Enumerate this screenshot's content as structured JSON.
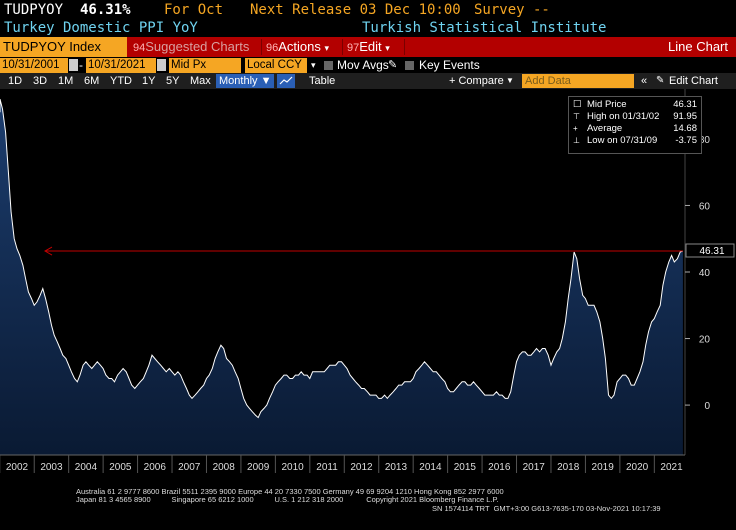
{
  "header": {
    "ticker": "TUDPYOY",
    "value": "46.31%",
    "for_label": "For Oct",
    "next_release": "Next Release 03 Dec 10:00",
    "survey": "Survey --",
    "name": "Turkey Domestic PPI YoY",
    "source": "Turkish Statistical Institute"
  },
  "toolbar": {
    "security": "TUDPYOY Index",
    "suggested_num": "94",
    "suggested": "Suggested Charts",
    "actions_num": "96",
    "actions": "Actions",
    "edit_num": "97",
    "edit": "Edit",
    "title": "Line Chart"
  },
  "params": {
    "start_date": "10/31/2001",
    "end_date": "10/31/2021",
    "field": "Mid Px",
    "currency": "Local CCY",
    "mov_avgs": "Mov Avgs",
    "key_events": "Key Events"
  },
  "periods": {
    "items": [
      "1D",
      "3D",
      "1M",
      "6M",
      "YTD",
      "1Y",
      "5Y",
      "Max"
    ],
    "frequency": "Monthly",
    "table": "Table",
    "compare": "+ Compare",
    "add_data_placeholder": "Add Data",
    "edit_chart": "Edit Chart"
  },
  "legend": {
    "rows": [
      {
        "label": "Mid Price",
        "value": "46.31"
      },
      {
        "label": "High on 01/31/02",
        "value": "91.95"
      },
      {
        "label": "Average",
        "value": "14.68"
      },
      {
        "label": "Low on 07/31/09",
        "value": "-3.75"
      }
    ]
  },
  "footer": {
    "line1": "Australia 61 2 9777 8600 Brazil 5511 2395 9000 Europe 44 20 7330 7500 Germany 49 69 9204 1210 Hong Kong 852 2977 6000",
    "line2": "Japan 81 3 4565 8900          Singapore 65 6212 1000          U.S. 1 212 318 2000           Copyright 2021 Bloomberg Finance L.P.",
    "line3": "SN 1574114 TRT  GMT+3:00 G613-7635-170 03-Nov-2021 10:17:39"
  },
  "colors": {
    "accent": "#f5a623",
    "toolbar": "#b30000",
    "line": "#ffffff",
    "fill_top": "#1c3d6e",
    "marker": "#c00000"
  },
  "chart_data": {
    "type": "area",
    "ylim": [
      -15,
      95
    ],
    "yticks": [
      0,
      20,
      40,
      60,
      80
    ],
    "x_labels": [
      "2002",
      "2003",
      "2004",
      "2005",
      "2006",
      "2007",
      "2008",
      "2009",
      "2010",
      "2011",
      "2012",
      "2013",
      "2014",
      "2015",
      "2016",
      "2017",
      "2018",
      "2019",
      "2020",
      "2021"
    ],
    "last_value_label": "46.31",
    "reference_line": 46.31,
    "points": [
      [
        2001.83,
        88
      ],
      [
        2002.0,
        91.95
      ],
      [
        2002.08,
        89
      ],
      [
        2002.17,
        82
      ],
      [
        2002.25,
        70
      ],
      [
        2002.33,
        58
      ],
      [
        2002.42,
        50
      ],
      [
        2002.5,
        47
      ],
      [
        2002.58,
        45
      ],
      [
        2002.67,
        42
      ],
      [
        2002.75,
        38
      ],
      [
        2002.83,
        34
      ],
      [
        2002.92,
        32
      ],
      [
        2003.0,
        30
      ],
      [
        2003.08,
        31
      ],
      [
        2003.17,
        33
      ],
      [
        2003.25,
        35
      ],
      [
        2003.33,
        32
      ],
      [
        2003.42,
        28
      ],
      [
        2003.5,
        24
      ],
      [
        2003.58,
        21
      ],
      [
        2003.67,
        19
      ],
      [
        2003.75,
        17
      ],
      [
        2003.83,
        15
      ],
      [
        2003.92,
        14
      ],
      [
        2004.0,
        12
      ],
      [
        2004.08,
        10
      ],
      [
        2004.17,
        8
      ],
      [
        2004.25,
        7
      ],
      [
        2004.33,
        9
      ],
      [
        2004.42,
        12
      ],
      [
        2004.5,
        13
      ],
      [
        2004.58,
        12
      ],
      [
        2004.67,
        11
      ],
      [
        2004.75,
        12
      ],
      [
        2004.83,
        13
      ],
      [
        2004.92,
        12
      ],
      [
        2005.0,
        11
      ],
      [
        2005.08,
        9
      ],
      [
        2005.17,
        8
      ],
      [
        2005.25,
        8
      ],
      [
        2005.33,
        7
      ],
      [
        2005.42,
        9
      ],
      [
        2005.5,
        10
      ],
      [
        2005.58,
        11
      ],
      [
        2005.67,
        10
      ],
      [
        2005.75,
        8
      ],
      [
        2005.83,
        6
      ],
      [
        2005.92,
        5
      ],
      [
        2006.0,
        6
      ],
      [
        2006.08,
        7
      ],
      [
        2006.17,
        8
      ],
      [
        2006.25,
        10
      ],
      [
        2006.33,
        12
      ],
      [
        2006.42,
        15
      ],
      [
        2006.5,
        14
      ],
      [
        2006.58,
        13
      ],
      [
        2006.67,
        12
      ],
      [
        2006.75,
        11
      ],
      [
        2006.83,
        10
      ],
      [
        2006.92,
        11
      ],
      [
        2007.0,
        10
      ],
      [
        2007.08,
        9
      ],
      [
        2007.17,
        10
      ],
      [
        2007.25,
        9
      ],
      [
        2007.33,
        7
      ],
      [
        2007.42,
        5
      ],
      [
        2007.5,
        3
      ],
      [
        2007.58,
        2
      ],
      [
        2007.67,
        3
      ],
      [
        2007.75,
        4
      ],
      [
        2007.83,
        5
      ],
      [
        2007.92,
        6
      ],
      [
        2008.0,
        8
      ],
      [
        2008.08,
        9
      ],
      [
        2008.17,
        11
      ],
      [
        2008.25,
        14
      ],
      [
        2008.33,
        16
      ],
      [
        2008.42,
        18
      ],
      [
        2008.5,
        17
      ],
      [
        2008.58,
        14
      ],
      [
        2008.67,
        13
      ],
      [
        2008.75,
        12
      ],
      [
        2008.83,
        10
      ],
      [
        2008.92,
        8
      ],
      [
        2009.0,
        5
      ],
      [
        2009.08,
        2
      ],
      [
        2009.17,
        0
      ],
      [
        2009.25,
        -1
      ],
      [
        2009.33,
        -2
      ],
      [
        2009.42,
        -3
      ],
      [
        2009.5,
        -3.75
      ],
      [
        2009.58,
        -2
      ],
      [
        2009.67,
        -1
      ],
      [
        2009.75,
        0
      ],
      [
        2009.83,
        2
      ],
      [
        2009.92,
        4
      ],
      [
        2010.0,
        6
      ],
      [
        2010.08,
        7
      ],
      [
        2010.17,
        8
      ],
      [
        2010.25,
        9
      ],
      [
        2010.33,
        9
      ],
      [
        2010.42,
        8
      ],
      [
        2010.5,
        8
      ],
      [
        2010.58,
        9
      ],
      [
        2010.67,
        9
      ],
      [
        2010.75,
        10
      ],
      [
        2010.83,
        9
      ],
      [
        2010.92,
        9
      ],
      [
        2011.0,
        8
      ],
      [
        2011.08,
        10
      ],
      [
        2011.17,
        10
      ],
      [
        2011.25,
        10
      ],
      [
        2011.33,
        10
      ],
      [
        2011.42,
        10
      ],
      [
        2011.5,
        11
      ],
      [
        2011.58,
        12
      ],
      [
        2011.67,
        12
      ],
      [
        2011.75,
        12
      ],
      [
        2011.83,
        13
      ],
      [
        2011.92,
        13
      ],
      [
        2012.0,
        12
      ],
      [
        2012.08,
        11
      ],
      [
        2012.17,
        9
      ],
      [
        2012.25,
        8
      ],
      [
        2012.33,
        7
      ],
      [
        2012.42,
        6
      ],
      [
        2012.5,
        5
      ],
      [
        2012.58,
        5
      ],
      [
        2012.67,
        4
      ],
      [
        2012.75,
        3
      ],
      [
        2012.83,
        3
      ],
      [
        2012.92,
        3
      ],
      [
        2013.0,
        2
      ],
      [
        2013.08,
        2
      ],
      [
        2013.17,
        3
      ],
      [
        2013.25,
        2
      ],
      [
        2013.33,
        3
      ],
      [
        2013.42,
        4
      ],
      [
        2013.5,
        5
      ],
      [
        2013.58,
        6
      ],
      [
        2013.67,
        6
      ],
      [
        2013.75,
        7
      ],
      [
        2013.83,
        7
      ],
      [
        2013.92,
        7
      ],
      [
        2014.0,
        8
      ],
      [
        2014.08,
        10
      ],
      [
        2014.17,
        11
      ],
      [
        2014.25,
        12
      ],
      [
        2014.33,
        13
      ],
      [
        2014.42,
        12
      ],
      [
        2014.5,
        11
      ],
      [
        2014.58,
        10
      ],
      [
        2014.67,
        10
      ],
      [
        2014.75,
        9
      ],
      [
        2014.83,
        8
      ],
      [
        2014.92,
        7
      ],
      [
        2015.0,
        5
      ],
      [
        2015.08,
        4
      ],
      [
        2015.17,
        4
      ],
      [
        2015.25,
        5
      ],
      [
        2015.33,
        6
      ],
      [
        2015.42,
        7
      ],
      [
        2015.5,
        7
      ],
      [
        2015.58,
        6
      ],
      [
        2015.67,
        6
      ],
      [
        2015.75,
        7
      ],
      [
        2015.83,
        6
      ],
      [
        2015.92,
        5
      ],
      [
        2016.0,
        4
      ],
      [
        2016.08,
        3
      ],
      [
        2016.17,
        3
      ],
      [
        2016.25,
        3
      ],
      [
        2016.33,
        3
      ],
      [
        2016.42,
        4
      ],
      [
        2016.5,
        3
      ],
      [
        2016.58,
        3
      ],
      [
        2016.67,
        2
      ],
      [
        2016.75,
        2
      ],
      [
        2016.83,
        4
      ],
      [
        2016.92,
        9
      ],
      [
        2017.0,
        13
      ],
      [
        2017.08,
        15
      ],
      [
        2017.17,
        16
      ],
      [
        2017.25,
        16
      ],
      [
        2017.33,
        15
      ],
      [
        2017.42,
        15
      ],
      [
        2017.5,
        16
      ],
      [
        2017.58,
        17
      ],
      [
        2017.67,
        16
      ],
      [
        2017.75,
        17
      ],
      [
        2017.83,
        17
      ],
      [
        2017.92,
        15
      ],
      [
        2018.0,
        12
      ],
      [
        2018.08,
        14
      ],
      [
        2018.17,
        16
      ],
      [
        2018.25,
        17
      ],
      [
        2018.33,
        20
      ],
      [
        2018.42,
        25
      ],
      [
        2018.5,
        32
      ],
      [
        2018.58,
        38
      ],
      [
        2018.67,
        46
      ],
      [
        2018.75,
        44
      ],
      [
        2018.83,
        38
      ],
      [
        2018.92,
        33
      ],
      [
        2019.0,
        32
      ],
      [
        2019.08,
        30
      ],
      [
        2019.17,
        30
      ],
      [
        2019.25,
        30
      ],
      [
        2019.33,
        28
      ],
      [
        2019.42,
        25
      ],
      [
        2019.5,
        20
      ],
      [
        2019.58,
        14
      ],
      [
        2019.67,
        3
      ],
      [
        2019.75,
        2
      ],
      [
        2019.83,
        3
      ],
      [
        2019.92,
        7
      ],
      [
        2020.0,
        8
      ],
      [
        2020.08,
        9
      ],
      [
        2020.17,
        9
      ],
      [
        2020.25,
        8
      ],
      [
        2020.33,
        6
      ],
      [
        2020.42,
        6
      ],
      [
        2020.5,
        8
      ],
      [
        2020.58,
        10
      ],
      [
        2020.67,
        13
      ],
      [
        2020.75,
        18
      ],
      [
        2020.83,
        22
      ],
      [
        2020.92,
        25
      ],
      [
        2021.0,
        26
      ],
      [
        2021.08,
        28
      ],
      [
        2021.17,
        30
      ],
      [
        2021.25,
        36
      ],
      [
        2021.33,
        40
      ],
      [
        2021.42,
        43
      ],
      [
        2021.5,
        45
      ],
      [
        2021.58,
        43
      ],
      [
        2021.67,
        44
      ],
      [
        2021.75,
        46
      ],
      [
        2021.83,
        46.31
      ]
    ]
  }
}
